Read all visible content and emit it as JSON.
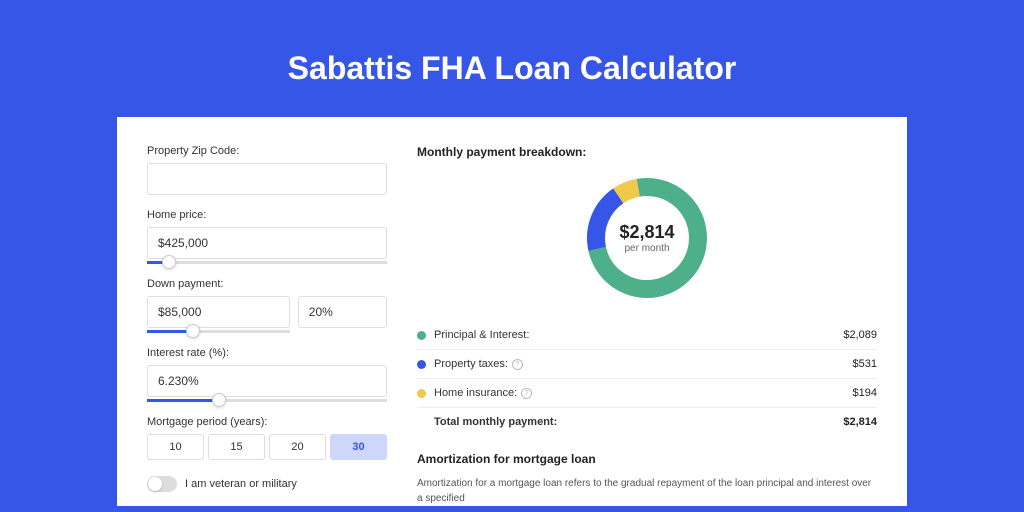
{
  "page": {
    "title": "Sabattis FHA Loan Calculator"
  },
  "form": {
    "zip": {
      "label": "Property Zip Code:",
      "value": ""
    },
    "home_price": {
      "label": "Home price:",
      "value": "$425,000",
      "slider_pct": 9
    },
    "down_payment": {
      "label": "Down payment:",
      "amount": "$85,000",
      "pct": "20%",
      "slider_pct": 20
    },
    "interest_rate": {
      "label": "Interest rate (%):",
      "value": "6.230%",
      "slider_pct": 30
    },
    "mortgage_period": {
      "label": "Mortgage period (years):",
      "options": [
        "10",
        "15",
        "20",
        "30"
      ],
      "selected_index": 3
    },
    "veteran": {
      "label": "I am veteran or military",
      "checked": false
    }
  },
  "breakdown": {
    "title": "Monthly payment breakdown:",
    "center_amount": "$2,814",
    "center_sub": "per month",
    "items": [
      {
        "label": "Principal & Interest:",
        "value": "$2,089",
        "color": "#4eb08a",
        "has_info": false
      },
      {
        "label": "Property taxes:",
        "value": "$531",
        "color": "#3656e8",
        "has_info": true
      },
      {
        "label": "Home insurance:",
        "value": "$194",
        "color": "#f0c94a",
        "has_info": true
      }
    ],
    "total": {
      "label": "Total monthly payment:",
      "value": "$2,814"
    },
    "donut": {
      "slices": [
        {
          "color": "#4eb08a",
          "pct": 74.2
        },
        {
          "color": "#3656e8",
          "pct": 18.9
        },
        {
          "color": "#f0c94a",
          "pct": 6.9
        }
      ],
      "stroke_width": 18
    }
  },
  "amortization": {
    "title": "Amortization for mortgage loan",
    "text": "Amortization for a mortgage loan refers to the gradual repayment of the loan principal and interest over a specified"
  },
  "colors": {
    "page_bg": "#3656e8",
    "card_bg": "#ffffff",
    "border": "#dddddd",
    "text": "#333333"
  }
}
